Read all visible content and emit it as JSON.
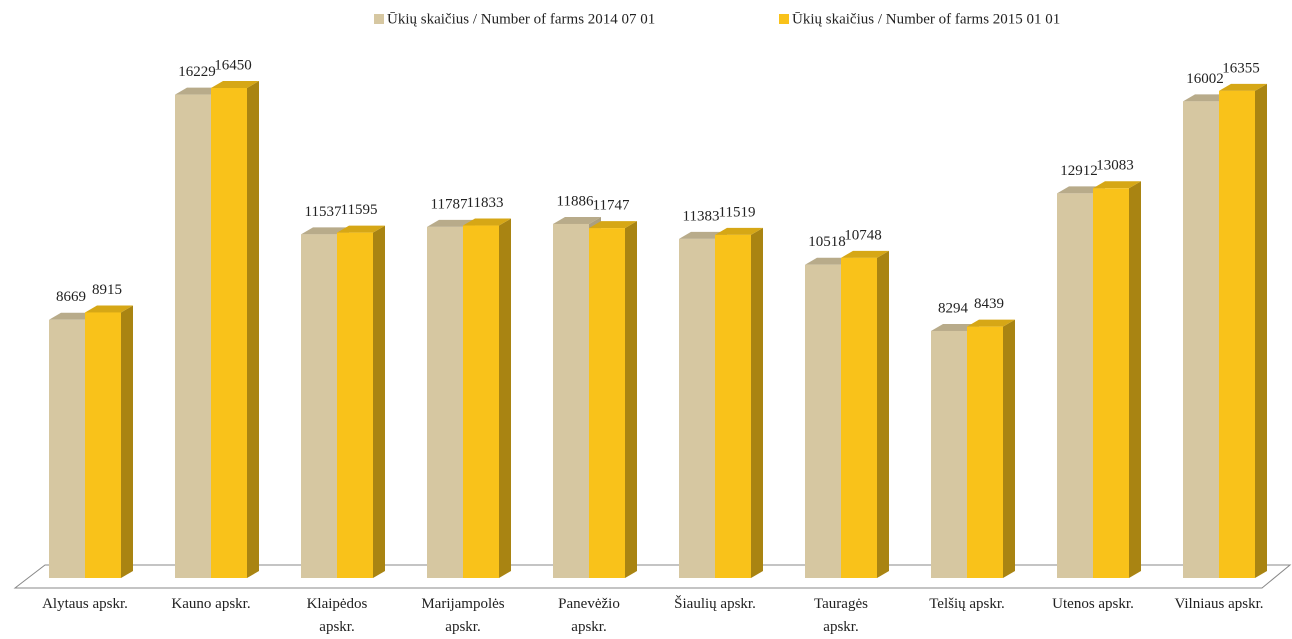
{
  "chart_data": {
    "type": "bar3d",
    "categories": [
      "Alytaus apskr.",
      "Kauno apskr.",
      "Klaipėdos apskr.",
      "Marijampolės apskr.",
      "Panevėžio apskr.",
      "Šiaulių apskr.",
      "Tauragės apskr.",
      "Telšių apskr.",
      "Utenos apskr.",
      "Vilniaus apskr."
    ],
    "series": [
      {
        "name": "Ūkių skaičius / Number of farms 2014 07 01",
        "color": "#d6c7a1",
        "values": [
          8669,
          16229,
          11537,
          11787,
          11886,
          11383,
          10518,
          8294,
          12912,
          16002
        ]
      },
      {
        "name": "Ūkių skaičius / Number of farms 2015 01 01",
        "color": "#f9c21a",
        "values": [
          8915,
          16450,
          11595,
          11833,
          11747,
          11519,
          10748,
          8439,
          13083,
          16355
        ]
      }
    ],
    "legend": "top"
  }
}
